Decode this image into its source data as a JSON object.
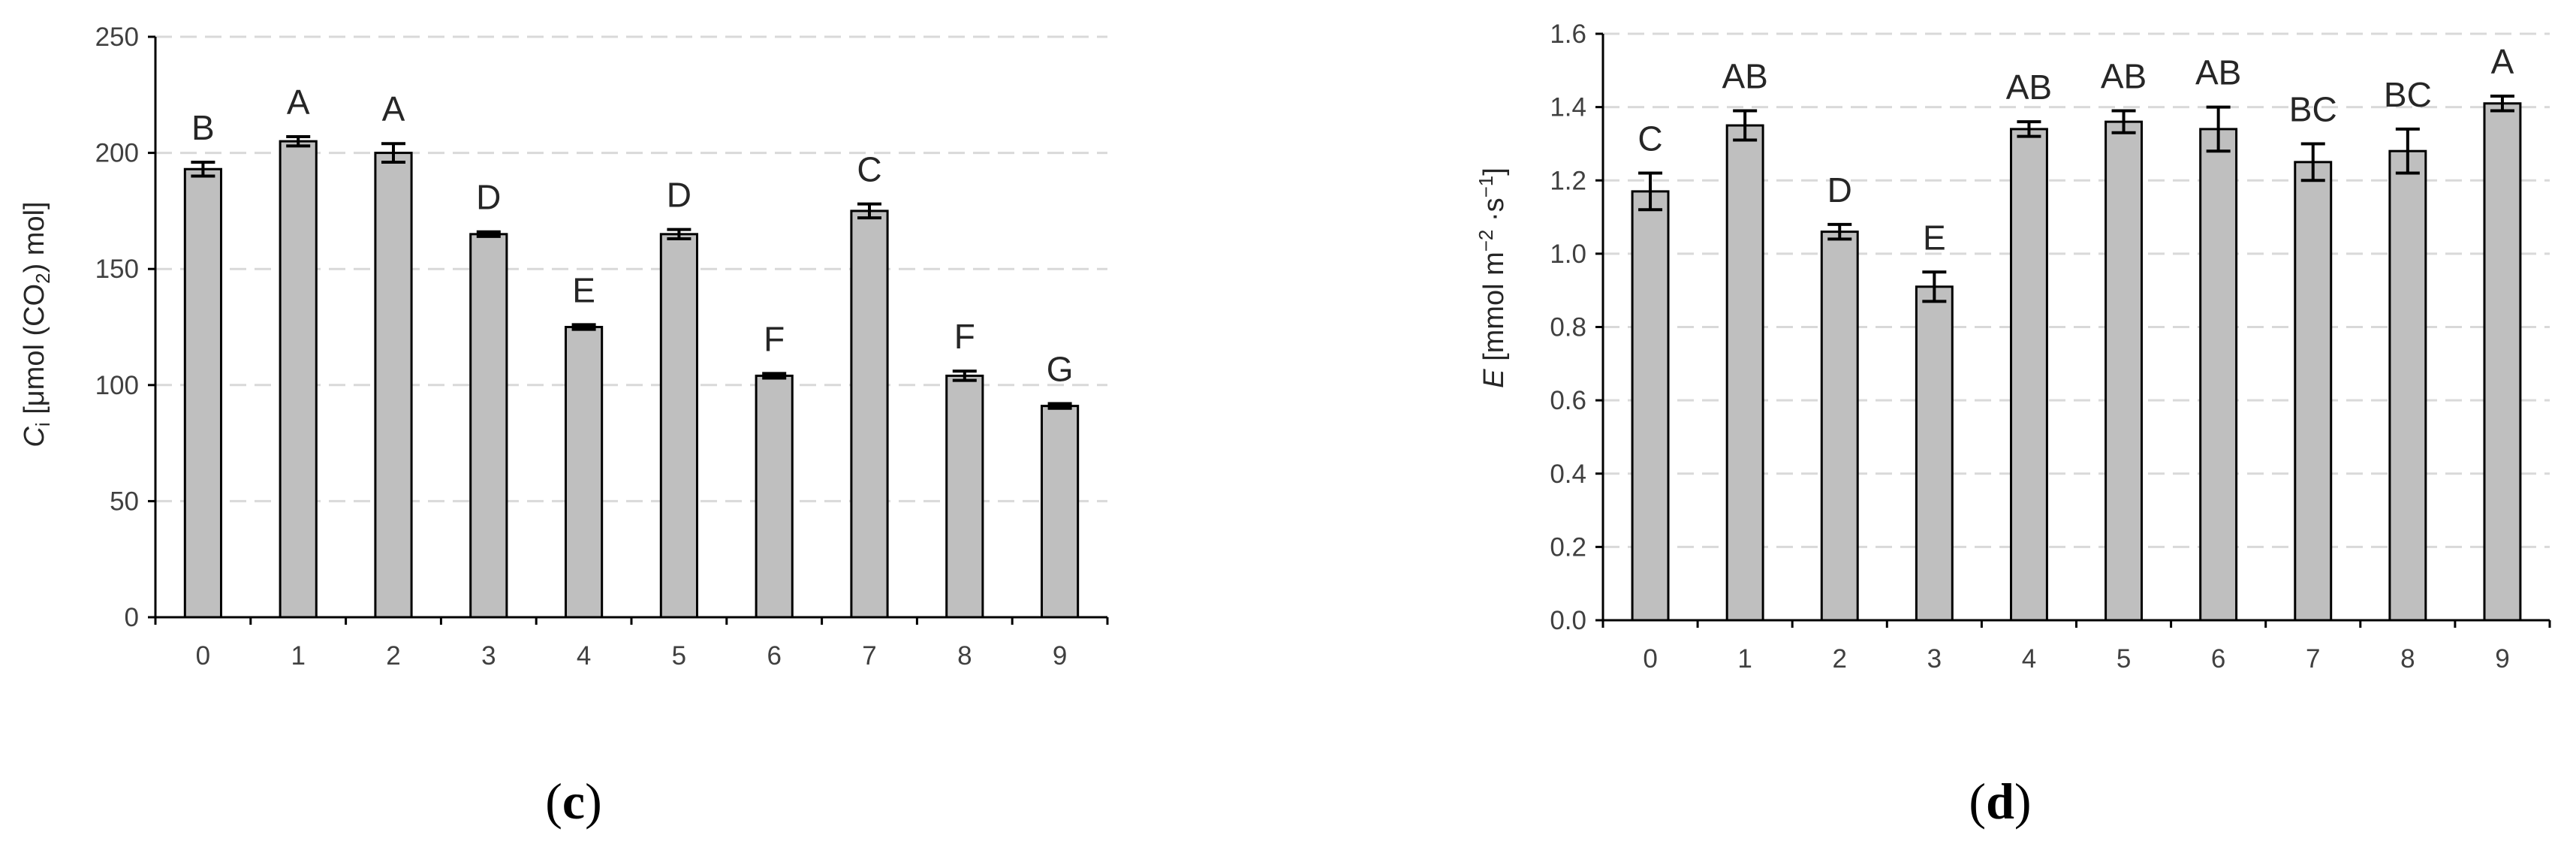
{
  "colors": {
    "bar_fill": "#bfbfbf",
    "bar_stroke": "#000000",
    "grid": "#d9d9d9"
  },
  "chart_data": [
    {
      "type": "bar",
      "panel_label": "c",
      "ylabel_symbol": "C",
      "ylabel_subscript": "i",
      "ylabel_unit_before": " [μmol (CO",
      "ylabel_unit_sub": "2",
      "ylabel_unit_after": ") mol]",
      "categories": [
        "0",
        "1",
        "2",
        "3",
        "4",
        "5",
        "6",
        "7",
        "8",
        "9"
      ],
      "values": [
        193,
        205,
        200,
        165,
        125,
        165,
        104,
        175,
        104,
        91
      ],
      "errors": [
        3,
        2,
        4,
        1,
        1,
        2,
        1,
        3,
        2,
        1
      ],
      "letters": [
        "B",
        "A",
        "A",
        "D",
        "E",
        "D",
        "F",
        "C",
        "F",
        "G"
      ],
      "ylim": [
        0,
        250
      ],
      "yticks": [
        "0",
        "50",
        "100",
        "150",
        "200",
        "250"
      ],
      "grid": true
    },
    {
      "type": "bar",
      "panel_label": "d",
      "ylabel_symbol": "E",
      "ylabel_unit_before": " [mmol m",
      "ylabel_sup1": "−2",
      "ylabel_mid": " ·s",
      "ylabel_sup2": "−1",
      "ylabel_unit_after": "]",
      "categories": [
        "0",
        "1",
        "2",
        "3",
        "4",
        "5",
        "6",
        "7",
        "8",
        "9"
      ],
      "values": [
        1.17,
        1.35,
        1.06,
        0.91,
        1.34,
        1.36,
        1.34,
        1.25,
        1.28,
        1.41
      ],
      "errors": [
        0.05,
        0.04,
        0.02,
        0.04,
        0.02,
        0.03,
        0.06,
        0.05,
        0.06,
        0.02
      ],
      "letters": [
        "C",
        "AB",
        "D",
        "E",
        "AB",
        "AB",
        "AB",
        "BC",
        "BC",
        "A"
      ],
      "ylim": [
        0,
        1.6
      ],
      "yticks": [
        "0.0",
        "0.2",
        "0.4",
        "0.6",
        "0.8",
        "1.0",
        "1.2",
        "1.4",
        "1.6"
      ],
      "grid": true
    }
  ]
}
